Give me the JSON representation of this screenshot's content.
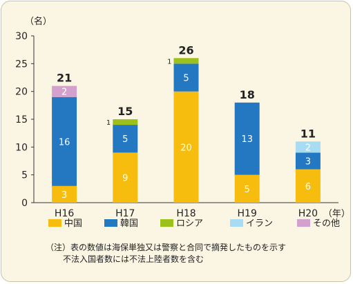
{
  "chart_data": {
    "type": "bar",
    "stacked": true,
    "y_unit_label": "（名）",
    "x_unit_label": "（年）",
    "categories": [
      "H16",
      "H17",
      "H18",
      "H19",
      "H20"
    ],
    "ylim": [
      0,
      30
    ],
    "yticks": [
      0,
      5,
      10,
      15,
      20,
      25,
      30
    ],
    "grid": false,
    "legend_position": "bottom",
    "series": [
      {
        "name": "中国",
        "color": "#f6bd0e",
        "values": [
          3,
          9,
          20,
          5,
          6
        ]
      },
      {
        "name": "韓国",
        "color": "#2478c2",
        "values": [
          16,
          5,
          5,
          13,
          3
        ]
      },
      {
        "name": "ロシア",
        "color": "#9cc11a",
        "values": [
          0,
          1,
          1,
          0,
          0
        ]
      },
      {
        "name": "イラン",
        "color": "#a7dcf2",
        "values": [
          0,
          0,
          0,
          0,
          2
        ]
      },
      {
        "name": "その他",
        "color": "#d4a1cf",
        "values": [
          2,
          0,
          0,
          0,
          0
        ]
      }
    ],
    "totals": [
      21,
      15,
      26,
      18,
      11
    ]
  },
  "notes": [
    "（注）表の数値は海保単独又は警察と合同で摘発したものを示す",
    "不法入国者数には不法上陸者数を含む"
  ]
}
